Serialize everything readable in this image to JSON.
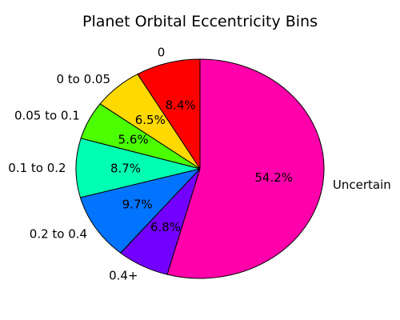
{
  "chart_data": {
    "type": "pie",
    "title": "Planet Orbital Eccentricity Bins",
    "start_angle_deg": 90,
    "direction": "counterclockwise",
    "slices": [
      {
        "label": "0",
        "value": 8.4,
        "display": "8.4%",
        "color": "#ff0000"
      },
      {
        "label": "0 to 0.05",
        "value": 6.5,
        "display": "6.5%",
        "color": "#ffd900"
      },
      {
        "label": "0.05 to 0.1",
        "value": 5.6,
        "display": "5.6%",
        "color": "#4cff00"
      },
      {
        "label": "0.1 to 0.2",
        "value": 8.7,
        "display": "8.7%",
        "color": "#00ffb2"
      },
      {
        "label": "0.2 to 0.4",
        "value": 9.7,
        "display": "9.7%",
        "color": "#0073ff"
      },
      {
        "label": "0.4+",
        "value": 6.8,
        "display": "6.8%",
        "color": "#7300ff"
      },
      {
        "label": "Uncertain",
        "value": 54.2,
        "display": "54.2%",
        "color": "#ff00aa"
      }
    ]
  }
}
